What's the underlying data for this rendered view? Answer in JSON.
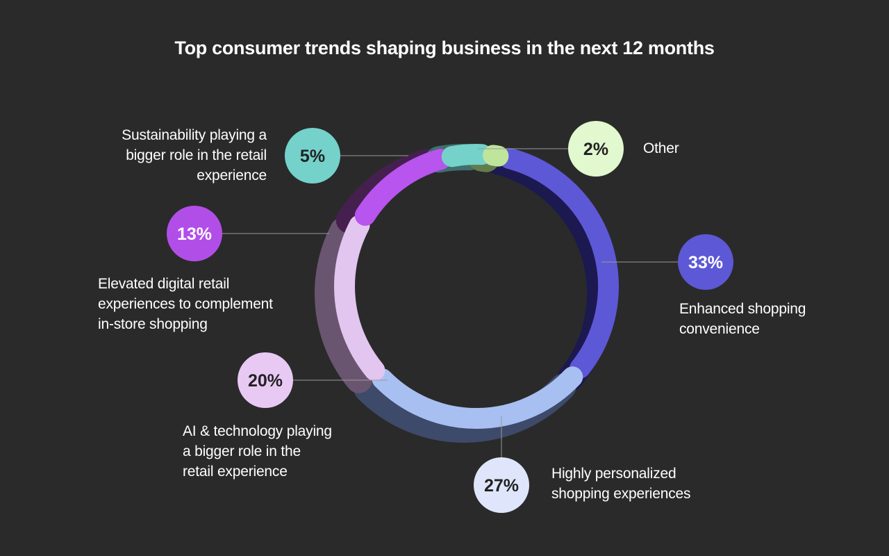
{
  "title": "Top consumer trends shaping business in the next 12 months",
  "chart_data": {
    "type": "pie",
    "variant": "donut",
    "title": "Top consumer trends shaping business in the next 12 months",
    "unit": "%",
    "slices": [
      {
        "label": "Enhanced shopping convenience",
        "value": 33,
        "display": "33%",
        "color": "#5d58d6",
        "bubble_color": "#5d58d6",
        "bubble_text_color": "#ffffff",
        "dark_color": "#1b1950"
      },
      {
        "label": "Highly personalized shopping experiences",
        "value": 27,
        "display": "27%",
        "color": "#a8bff2",
        "bubble_color": "#dfe6fb",
        "bubble_text_color": "#222222",
        "dark_color": "#3d4a6a"
      },
      {
        "label": "AI & technology playing a bigger role in the retail experience",
        "value": 20,
        "display": "20%",
        "color": "#e2c6ef",
        "bubble_color": "#e8c9f4",
        "bubble_text_color": "#222222",
        "dark_color": "#6a5570"
      },
      {
        "label": "Elevated digital retail experiences to complement in-store shopping",
        "value": 13,
        "display": "13%",
        "color": "#b755ee",
        "bubble_color": "#b24ee8",
        "bubble_text_color": "#ffffff",
        "dark_color": "#45204f"
      },
      {
        "label": "Sustainability playing a bigger role in the retail experience",
        "value": 5,
        "display": "5%",
        "color": "#74d2cb",
        "bubble_color": "#74d2cb",
        "bubble_text_color": "#222222",
        "dark_color": "#3e6f6c"
      },
      {
        "label": "Other",
        "value": 2,
        "display": "2%",
        "color": "#bfe49c",
        "bubble_color": "#e2f8cf",
        "bubble_text_color": "#222222",
        "dark_color": "#637c4d"
      }
    ]
  },
  "labels": {
    "sustainability": [
      "Sustainability playing a",
      "bigger role in the retail",
      "experience"
    ],
    "other": [
      "Other"
    ],
    "elevated": [
      "Elevated digital retail",
      "experiences to complement",
      "in-store shopping"
    ],
    "enhanced": [
      "Enhanced shopping",
      "convenience"
    ],
    "ai": [
      "AI & technology playing",
      "a bigger role in the",
      "retail experience"
    ],
    "personalized": [
      "Highly personalized",
      "shopping experiences"
    ]
  }
}
